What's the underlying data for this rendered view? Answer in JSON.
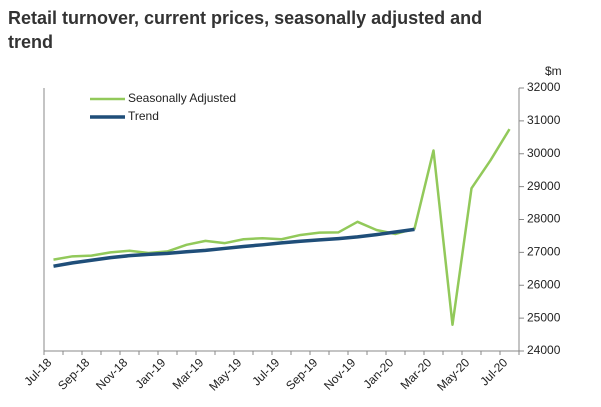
{
  "chart_data": {
    "type": "line",
    "title": "Retail turnover, current prices, seasonally adjusted and trend",
    "y_unit": "$m",
    "categories": [
      "Jul-18",
      null,
      "Sep-18",
      null,
      "Nov-18",
      null,
      "Jan-19",
      null,
      "Mar-19",
      null,
      "May-19",
      null,
      "Jul-19",
      null,
      "Sep-19",
      null,
      "Nov-19",
      null,
      "Jan-20",
      null,
      "Mar-20",
      null,
      "May-20",
      null,
      "Jul-20"
    ],
    "series": [
      {
        "name": "Seasonally Adjusted",
        "color": "#92c95a",
        "values": [
          26780,
          26880,
          26900,
          27000,
          27050,
          26980,
          27030,
          27230,
          27350,
          27280,
          27400,
          27430,
          27400,
          27530,
          27600,
          27610,
          27930,
          27680,
          27560,
          27720,
          30100,
          24800,
          28950,
          29800,
          30750
        ]
      },
      {
        "name": "Trend",
        "color": "#1f4e79",
        "values": [
          26580,
          26680,
          26760,
          26840,
          26900,
          26940,
          26970,
          27020,
          27060,
          27120,
          27180,
          27230,
          27290,
          27340,
          27380,
          27420,
          27470,
          27540,
          27620,
          27700,
          null,
          null,
          null,
          null,
          null
        ]
      }
    ],
    "ylim": [
      24000,
      32000
    ],
    "yticks": [
      24000,
      25000,
      26000,
      27000,
      28000,
      29000,
      30000,
      31000,
      32000
    ],
    "legend": "upper left"
  }
}
